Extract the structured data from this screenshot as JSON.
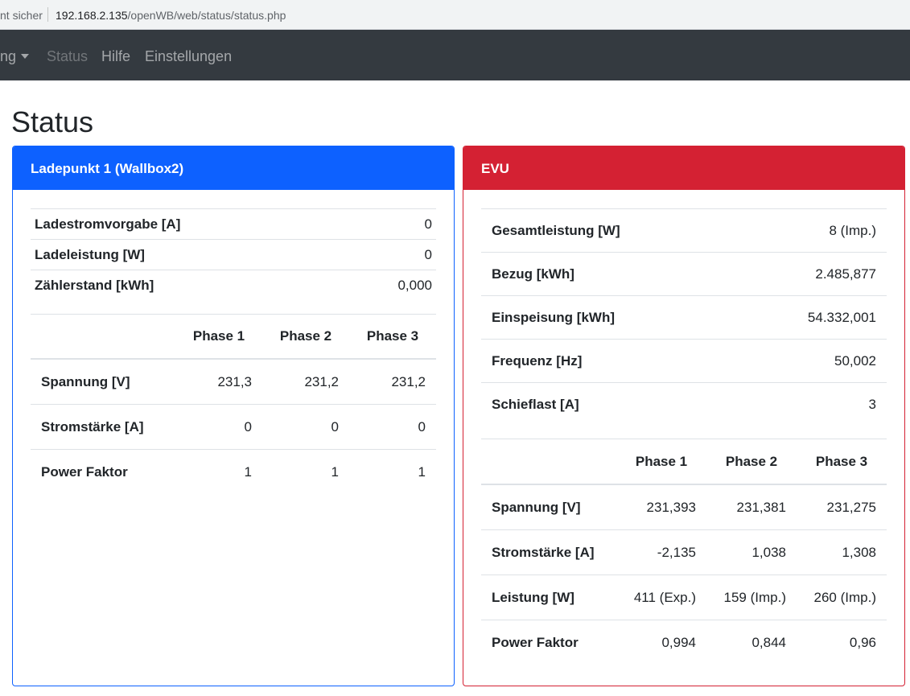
{
  "browser": {
    "security": "nt sicher",
    "url_host": "192.168.2.135",
    "url_path": "/openWB/web/status/status.php"
  },
  "nav": {
    "dropdown_label": "ng",
    "status_label": "Status",
    "hilfe_label": "Hilfe",
    "einstellungen_label": "Einstellungen"
  },
  "page_title": "Status",
  "ladepunkt": {
    "header": "Ladepunkt 1 (Wallbox2)",
    "rows": [
      {
        "label": "Ladestromvorgabe [A]",
        "value": "0"
      },
      {
        "label": "Ladeleistung [W]",
        "value": "0"
      },
      {
        "label": "Zählerstand [kWh]",
        "value": "0,000"
      }
    ],
    "phase_headers": [
      "Phase 1",
      "Phase 2",
      "Phase 3"
    ],
    "phase_rows": [
      {
        "label": "Spannung [V]",
        "values": [
          "231,3",
          "231,2",
          "231,2"
        ]
      },
      {
        "label": "Stromstärke [A]",
        "values": [
          "0",
          "0",
          "0"
        ]
      },
      {
        "label": "Power Faktor",
        "values": [
          "1",
          "1",
          "1"
        ]
      }
    ]
  },
  "evu": {
    "header": "EVU",
    "rows": [
      {
        "label": "Gesamtleistung [W]",
        "value": "8 (Imp.)"
      },
      {
        "label": "Bezug [kWh]",
        "value": "2.485,877"
      },
      {
        "label": "Einspeisung [kWh]",
        "value": "54.332,001"
      },
      {
        "label": "Frequenz [Hz]",
        "value": "50,002"
      },
      {
        "label": "Schieflast [A]",
        "value": "3"
      }
    ],
    "phase_headers": [
      "Phase 1",
      "Phase 2",
      "Phase 3"
    ],
    "phase_rows": [
      {
        "label": "Spannung [V]",
        "values": [
          "231,393",
          "231,381",
          "231,275"
        ]
      },
      {
        "label": "Stromstärke [A]",
        "values": [
          "-2,135",
          "1,038",
          "1,308"
        ]
      },
      {
        "label": "Leistung [W]",
        "values": [
          "411 (Exp.)",
          "159 (Imp.)",
          "260 (Imp.)"
        ]
      },
      {
        "label": "Power Faktor",
        "values": [
          "0,994",
          "0,844",
          "0,96"
        ]
      }
    ]
  },
  "colors": {
    "navbar": "#343a40",
    "ladepunkt_accent": "#0d61ff",
    "evu_accent": "#d42133"
  }
}
